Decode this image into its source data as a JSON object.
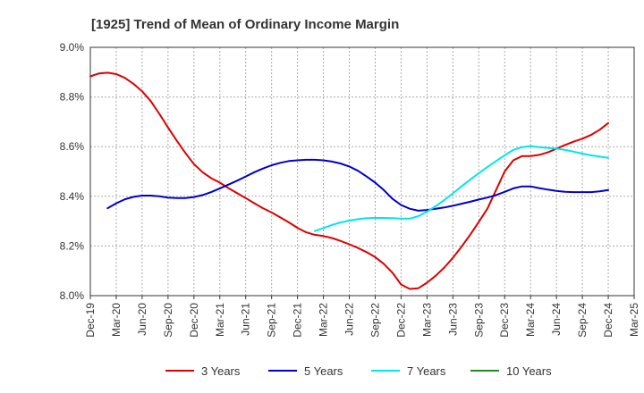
{
  "chart_data": {
    "type": "line",
    "title": "[1925]  Trend of Mean of Ordinary Income Margin",
    "xlabel": "",
    "ylabel": "",
    "x_ticks": [
      "Dec-19",
      "Mar-20",
      "Jun-20",
      "Sep-20",
      "Dec-20",
      "Mar-21",
      "Jun-21",
      "Sep-21",
      "Dec-21",
      "Mar-22",
      "Jun-22",
      "Sep-22",
      "Dec-22",
      "Mar-23",
      "Jun-23",
      "Sep-23",
      "Dec-23",
      "Mar-24",
      "Jun-24",
      "Sep-24",
      "Dec-24",
      "Mar-25"
    ],
    "y_ticks": [
      "8.0%",
      "8.2%",
      "8.4%",
      "8.6%",
      "8.8%",
      "9.0%"
    ],
    "ylim": [
      8.0,
      9.0
    ],
    "grid": true,
    "legend_position": "bottom",
    "series": [
      {
        "name": "3 Years",
        "color": "#dd0000",
        "points": [
          [
            "Dec-19",
            8.883
          ],
          [
            "Jan-20",
            8.895
          ],
          [
            "Feb-20",
            8.898
          ],
          [
            "Mar-20",
            8.892
          ],
          [
            "Apr-20",
            8.877
          ],
          [
            "May-20",
            8.853
          ],
          [
            "Jun-20",
            8.823
          ],
          [
            "Jul-20",
            8.783
          ],
          [
            "Aug-20",
            8.732
          ],
          [
            "Sep-20",
            8.677
          ],
          [
            "Oct-20",
            8.625
          ],
          [
            "Nov-20",
            8.575
          ],
          [
            "Dec-20",
            8.53
          ],
          [
            "Jan-21",
            8.497
          ],
          [
            "Feb-21",
            8.473
          ],
          [
            "Mar-21",
            8.455
          ],
          [
            "Apr-21",
            8.433
          ],
          [
            "May-21",
            8.413
          ],
          [
            "Jun-21",
            8.393
          ],
          [
            "Jul-21",
            8.372
          ],
          [
            "Aug-21",
            8.352
          ],
          [
            "Sep-21",
            8.335
          ],
          [
            "Oct-21",
            8.315
          ],
          [
            "Nov-21",
            8.295
          ],
          [
            "Dec-21",
            8.273
          ],
          [
            "Jan-22",
            8.255
          ],
          [
            "Feb-22",
            8.245
          ],
          [
            "Mar-22",
            8.24
          ],
          [
            "Apr-22",
            8.232
          ],
          [
            "May-22",
            8.22
          ],
          [
            "Jun-22",
            8.207
          ],
          [
            "Jul-22",
            8.192
          ],
          [
            "Aug-22",
            8.175
          ],
          [
            "Sep-22",
            8.155
          ],
          [
            "Oct-22",
            8.128
          ],
          [
            "Nov-22",
            8.092
          ],
          [
            "Dec-22",
            8.045
          ],
          [
            "Jan-23",
            8.027
          ],
          [
            "Feb-23",
            8.03
          ],
          [
            "Mar-23",
            8.052
          ],
          [
            "Apr-23",
            8.08
          ],
          [
            "May-23",
            8.113
          ],
          [
            "Jun-23",
            8.152
          ],
          [
            "Jul-23",
            8.197
          ],
          [
            "Aug-23",
            8.245
          ],
          [
            "Sep-23",
            8.297
          ],
          [
            "Oct-23",
            8.35
          ],
          [
            "Nov-23",
            8.425
          ],
          [
            "Dec-23",
            8.5
          ],
          [
            "Jan-24",
            8.545
          ],
          [
            "Feb-24",
            8.562
          ],
          [
            "Mar-24",
            8.562
          ],
          [
            "Apr-24",
            8.567
          ],
          [
            "May-24",
            8.577
          ],
          [
            "Jun-24",
            8.592
          ],
          [
            "Jul-24",
            8.607
          ],
          [
            "Aug-24",
            8.62
          ],
          [
            "Sep-24",
            8.632
          ],
          [
            "Oct-24",
            8.647
          ],
          [
            "Nov-24",
            8.668
          ],
          [
            "Dec-24",
            8.695
          ]
        ]
      },
      {
        "name": "5 Years",
        "color": "#0000cc",
        "points": [
          [
            "Dec-19",
            null
          ],
          [
            "Jan-20",
            null
          ],
          [
            "Feb-20",
            8.352
          ],
          [
            "Mar-20",
            8.372
          ],
          [
            "Apr-20",
            8.388
          ],
          [
            "May-20",
            8.398
          ],
          [
            "Jun-20",
            8.403
          ],
          [
            "Jul-20",
            8.403
          ],
          [
            "Aug-20",
            8.4
          ],
          [
            "Sep-20",
            8.395
          ],
          [
            "Oct-20",
            8.393
          ],
          [
            "Nov-20",
            8.393
          ],
          [
            "Dec-20",
            8.397
          ],
          [
            "Jan-21",
            8.405
          ],
          [
            "Feb-21",
            8.417
          ],
          [
            "Mar-21",
            8.432
          ],
          [
            "Apr-21",
            8.447
          ],
          [
            "May-21",
            8.463
          ],
          [
            "Jun-21",
            8.48
          ],
          [
            "Jul-21",
            8.497
          ],
          [
            "Aug-21",
            8.512
          ],
          [
            "Sep-21",
            8.525
          ],
          [
            "Oct-21",
            8.535
          ],
          [
            "Nov-21",
            8.542
          ],
          [
            "Dec-21",
            8.545
          ],
          [
            "Jan-22",
            8.547
          ],
          [
            "Feb-22",
            8.547
          ],
          [
            "Mar-22",
            8.545
          ],
          [
            "Apr-22",
            8.54
          ],
          [
            "May-22",
            8.532
          ],
          [
            "Jun-22",
            8.52
          ],
          [
            "Jul-22",
            8.503
          ],
          [
            "Aug-22",
            8.48
          ],
          [
            "Sep-22",
            8.455
          ],
          [
            "Oct-22",
            8.425
          ],
          [
            "Nov-22",
            8.39
          ],
          [
            "Dec-22",
            8.365
          ],
          [
            "Jan-23",
            8.35
          ],
          [
            "Feb-23",
            8.342
          ],
          [
            "Mar-23",
            8.345
          ],
          [
            "Apr-23",
            8.35
          ],
          [
            "May-23",
            8.355
          ],
          [
            "Jun-23",
            8.362
          ],
          [
            "Jul-23",
            8.37
          ],
          [
            "Aug-23",
            8.378
          ],
          [
            "Sep-23",
            8.387
          ],
          [
            "Oct-23",
            8.395
          ],
          [
            "Nov-23",
            8.405
          ],
          [
            "Dec-23",
            8.418
          ],
          [
            "Jan-24",
            8.432
          ],
          [
            "Feb-24",
            8.44
          ],
          [
            "Mar-24",
            8.44
          ],
          [
            "Apr-24",
            8.433
          ],
          [
            "May-24",
            8.427
          ],
          [
            "Jun-24",
            8.422
          ],
          [
            "Jul-24",
            8.418
          ],
          [
            "Aug-24",
            8.417
          ],
          [
            "Sep-24",
            8.417
          ],
          [
            "Oct-24",
            8.417
          ],
          [
            "Nov-24",
            8.42
          ],
          [
            "Dec-24",
            8.425
          ]
        ]
      },
      {
        "name": "7 Years",
        "color": "#00e5ee",
        "points": [
          [
            "Feb-22",
            8.26
          ],
          [
            "Mar-22",
            8.272
          ],
          [
            "Apr-22",
            8.285
          ],
          [
            "May-22",
            8.295
          ],
          [
            "Jun-22",
            8.302
          ],
          [
            "Jul-22",
            8.308
          ],
          [
            "Aug-22",
            8.312
          ],
          [
            "Sep-22",
            8.313
          ],
          [
            "Oct-22",
            8.313
          ],
          [
            "Nov-22",
            8.312
          ],
          [
            "Dec-22",
            8.31
          ],
          [
            "Jan-23",
            8.31
          ],
          [
            "Feb-23",
            8.32
          ],
          [
            "Mar-23",
            8.338
          ],
          [
            "Apr-23",
            8.36
          ],
          [
            "May-23",
            8.385
          ],
          [
            "Jun-23",
            8.412
          ],
          [
            "Jul-23",
            8.44
          ],
          [
            "Aug-23",
            8.467
          ],
          [
            "Sep-23",
            8.493
          ],
          [
            "Oct-23",
            8.518
          ],
          [
            "Nov-23",
            8.542
          ],
          [
            "Dec-23",
            8.565
          ],
          [
            "Jan-24",
            8.587
          ],
          [
            "Feb-24",
            8.598
          ],
          [
            "Mar-24",
            8.602
          ],
          [
            "Apr-24",
            8.598
          ],
          [
            "May-24",
            8.595
          ],
          [
            "Jun-24",
            8.592
          ],
          [
            "Jul-24",
            8.587
          ],
          [
            "Aug-24",
            8.58
          ],
          [
            "Sep-24",
            8.572
          ],
          [
            "Oct-24",
            8.565
          ],
          [
            "Nov-24",
            8.56
          ],
          [
            "Dec-24",
            8.555
          ]
        ]
      },
      {
        "name": "10 Years",
        "color": "#228b22",
        "points": []
      }
    ]
  }
}
